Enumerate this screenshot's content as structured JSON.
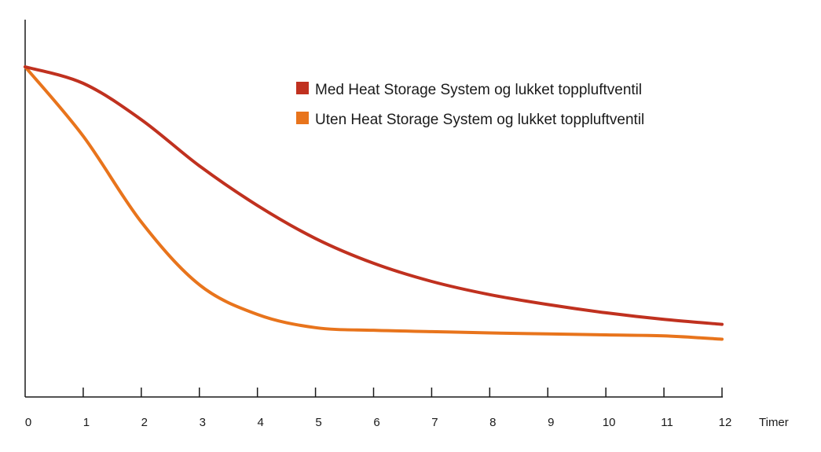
{
  "chart_data": {
    "type": "line",
    "xlabel": "Timer",
    "ylabel": "",
    "x": [
      0,
      1,
      2,
      3,
      4,
      5,
      6,
      7,
      8,
      9,
      10,
      11,
      12
    ],
    "xlim": [
      0,
      12
    ],
    "ylim": [
      0,
      100
    ],
    "legend_position": "top-right",
    "grid": false,
    "series": [
      {
        "name": "Med Heat Storage System og lukket toppluftventil",
        "color": "#c0311f",
        "values": [
          100,
          95,
          84,
          70,
          58,
          48,
          40.5,
          35,
          31,
          28,
          25.5,
          23.5,
          22
        ]
      },
      {
        "name": "Uten Heat Storage System og lukket toppluftventil",
        "color": "#e8741c",
        "values": [
          100,
          79,
          53,
          34,
          25,
          21,
          20.2,
          19.8,
          19.4,
          19.1,
          18.8,
          18.5,
          17.5
        ]
      }
    ]
  }
}
